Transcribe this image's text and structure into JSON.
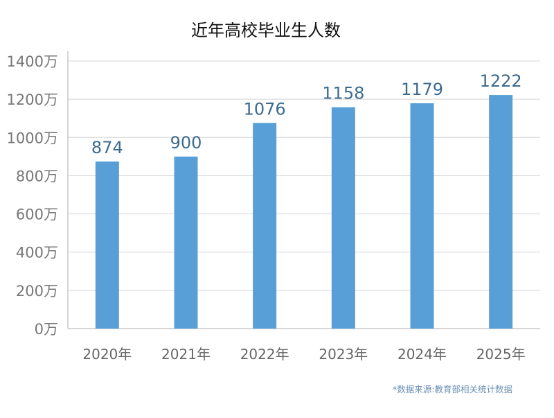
{
  "chart_data": {
    "type": "bar",
    "title": "近年高校毕业生人数",
    "categories": [
      "2020年",
      "2021年",
      "2022年",
      "2023年",
      "2024年",
      "2025年"
    ],
    "values": [
      874,
      900,
      1076,
      1158,
      1179,
      1222
    ],
    "data_labels": [
      "874",
      "900",
      "1076",
      "1158",
      "1179",
      "1222"
    ],
    "ylim": [
      0,
      1400
    ],
    "yticks": [
      {
        "value": 0,
        "label": "0万"
      },
      {
        "value": 200,
        "label": "200万"
      },
      {
        "value": 400,
        "label": "400万"
      },
      {
        "value": 600,
        "label": "600万"
      },
      {
        "value": 800,
        "label": "800万"
      },
      {
        "value": 1000,
        "label": "1000万"
      },
      {
        "value": 1200,
        "label": "1200万"
      },
      {
        "value": 1400,
        "label": "1400万"
      }
    ],
    "grid": true,
    "bar_color": "#579fd6",
    "label_color": "#3b6a8f",
    "source": "*数据来源:教育部相关统计数据"
  }
}
